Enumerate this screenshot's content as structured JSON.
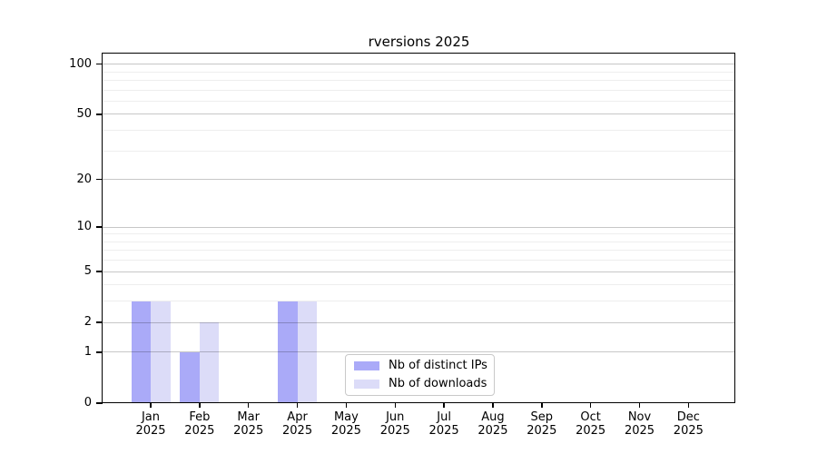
{
  "title": "rversions 2025",
  "chart_data": {
    "type": "bar",
    "title": "rversions 2025",
    "categories": [
      "Jan",
      "Feb",
      "Mar",
      "Apr",
      "May",
      "Jun",
      "Jul",
      "Aug",
      "Sep",
      "Oct",
      "Nov",
      "Dec"
    ],
    "category_year": "2025",
    "series": [
      {
        "name": "Nb of distinct IPs",
        "color": "#aaaaf8",
        "values": [
          3,
          1,
          0,
          3,
          0,
          0,
          0,
          0,
          0,
          0,
          0,
          0
        ]
      },
      {
        "name": "Nb of downloads",
        "color": "#dcdcf8",
        "values": [
          3,
          2,
          0,
          3,
          0,
          0,
          0,
          0,
          0,
          0,
          0,
          0
        ]
      }
    ],
    "xlabel": "",
    "ylabel": "",
    "y_axis": {
      "scale": "log1p",
      "ticks": [
        0,
        1,
        2,
        5,
        10,
        20,
        50,
        100
      ],
      "minor_ticks": [
        3,
        4,
        6,
        7,
        8,
        9,
        30,
        40,
        60,
        70,
        80,
        90
      ],
      "ylim": [
        0,
        115
      ]
    },
    "grid": "major-and-minor-horizontal",
    "legend": {
      "position": "inside-bottom-center",
      "entries": [
        "Nb of distinct IPs",
        "Nb of downloads"
      ]
    }
  }
}
